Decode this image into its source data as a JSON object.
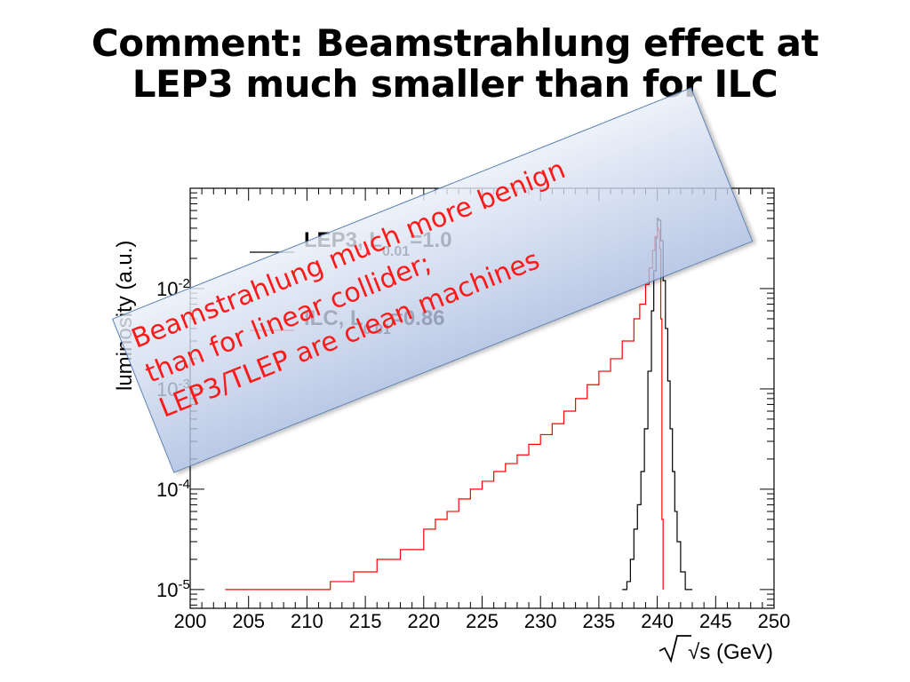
{
  "slide": {
    "title_line1": "Comment: Beamstrahlung effect at",
    "title_line2": "LEP3 much smaller than for ILC"
  },
  "callout": {
    "line1": "Beamstrahlung much more benign",
    "line2": "than for linear collider;",
    "line3": "LEP3/TLEP are clean machines"
  },
  "colors": {
    "lep3": "#000000",
    "ilc": "#ff0000",
    "callout_text": "#ff1a1a",
    "callout_border": "#5b7fb5"
  },
  "chart_data": {
    "type": "line",
    "ylabel": "luminosity (a.u.)",
    "xlabel": "√s (GeV)",
    "xlim": [
      200,
      250
    ],
    "ylim": [
      6.5e-06,
      0.1
    ],
    "yscale": "log",
    "x_ticks": [
      "200",
      "205",
      "210",
      "215",
      "220",
      "225",
      "230",
      "235",
      "240",
      "245",
      "250"
    ],
    "y_ticks": [
      {
        "base": "10",
        "exp": "-2",
        "value": 0.01
      },
      {
        "base": "10",
        "exp": "-3",
        "value": 0.001
      },
      {
        "base": "10",
        "exp": "-4",
        "value": 0.0001
      },
      {
        "base": "10",
        "exp": "-5",
        "value": 1e-05
      }
    ],
    "legend": [
      {
        "label_main": "LEP3, L",
        "label_sub": "0.01",
        "label_tail": "=1.0",
        "color": "#000000"
      },
      {
        "label_main": "ILC, L",
        "label_sub": "0.01",
        "label_tail": "=0.86",
        "color": "#ff0000"
      }
    ],
    "series": [
      {
        "name": "LEP3",
        "color": "#000000",
        "x": [
          237.0,
          237.4,
          237.7,
          238.0,
          238.3,
          238.6,
          238.9,
          239.2,
          239.5,
          239.7,
          239.9,
          240.0,
          240.1,
          240.3,
          240.5,
          240.7,
          240.9,
          241.1,
          241.3,
          241.5,
          241.7,
          242.0,
          242.4,
          242.7,
          243.0
        ],
        "y": [
          1e-05,
          1.2e-05,
          2e-05,
          4e-05,
          7e-05,
          0.00015,
          0.0004,
          0.0015,
          0.006,
          0.015,
          0.032,
          0.05,
          0.048,
          0.03,
          0.012,
          0.004,
          0.0012,
          0.0004,
          0.00015,
          6e-05,
          3e-05,
          1.5e-05,
          1e-05,
          1e-05,
          1e-05
        ]
      },
      {
        "name": "ILC",
        "color": "#ff0000",
        "x": [
          203,
          207,
          210,
          212,
          214,
          216,
          218,
          220,
          221,
          222,
          223,
          224,
          225,
          226,
          227,
          228,
          229,
          230,
          231,
          232,
          233,
          234,
          235,
          236,
          237,
          238,
          238.5,
          239.0,
          239.3,
          239.6,
          239.8,
          240.0,
          240.1,
          240.2,
          240.3,
          240.4,
          240.5
        ],
        "y": [
          1e-05,
          1e-05,
          1e-05,
          1.2e-05,
          1.5e-05,
          2e-05,
          2.5e-05,
          4e-05,
          5e-05,
          6e-05,
          8e-05,
          0.0001,
          0.00012,
          0.00015,
          0.00018,
          0.00022,
          0.00028,
          0.00035,
          0.00045,
          0.0006,
          0.0008,
          0.0011,
          0.0015,
          0.002,
          0.003,
          0.005,
          0.007,
          0.011,
          0.016,
          0.024,
          0.033,
          0.04,
          0.038,
          0.025,
          0.005,
          5e-05,
          1e-05
        ]
      }
    ],
    "grid": false,
    "legend_placement": "top-left"
  }
}
